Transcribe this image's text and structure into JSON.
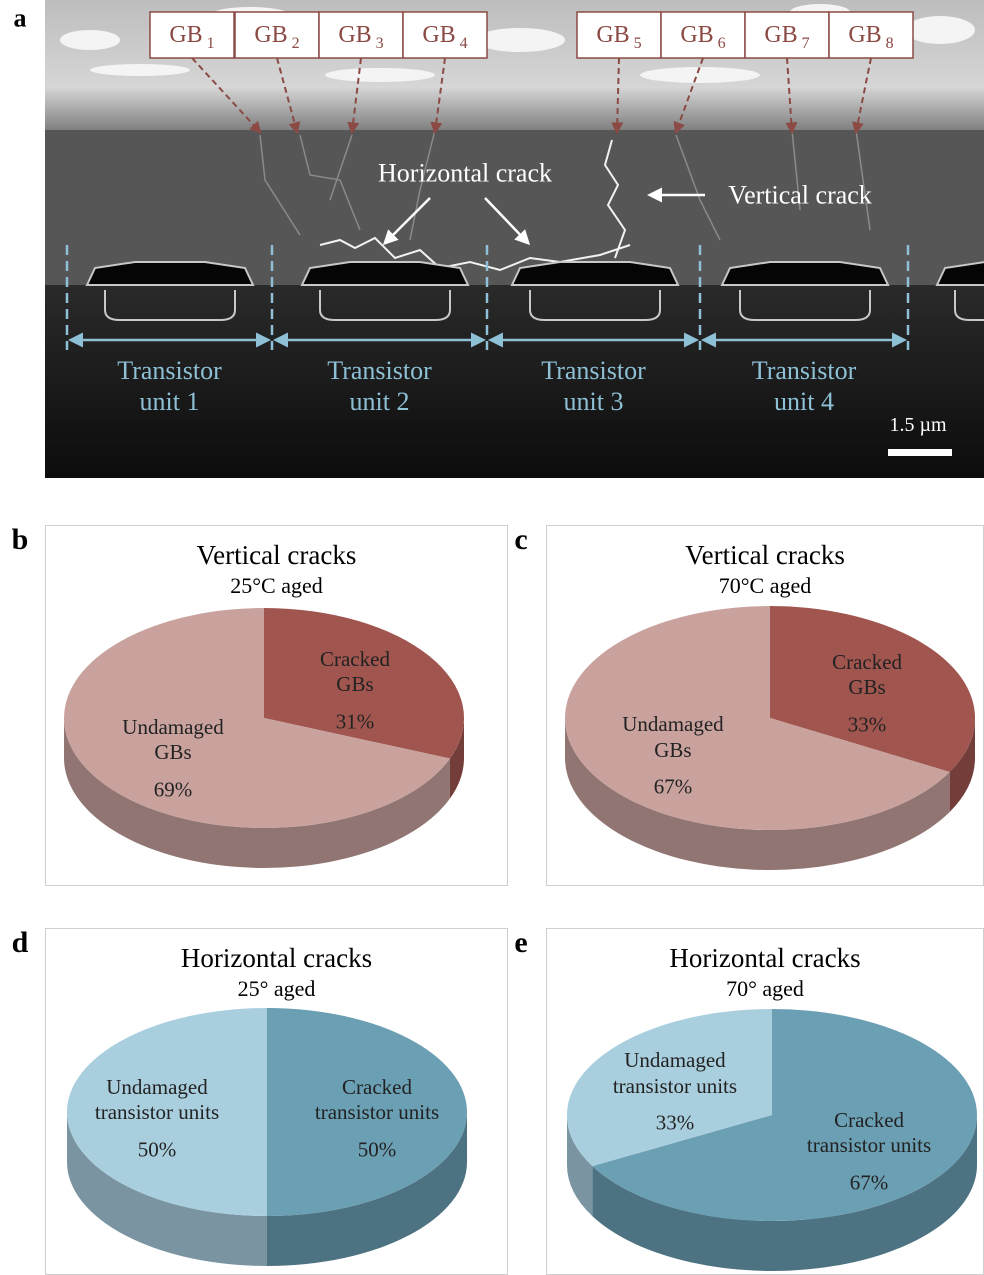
{
  "panel_a": {
    "label": "a",
    "grain_boundaries": [
      {
        "name": "GB",
        "index": "1"
      },
      {
        "name": "GB",
        "index": "2"
      },
      {
        "name": "GB",
        "index": "3"
      },
      {
        "name": "GB",
        "index": "4"
      },
      {
        "name": "GB",
        "index": "5"
      },
      {
        "name": "GB",
        "index": "6"
      },
      {
        "name": "GB",
        "index": "7"
      },
      {
        "name": "GB",
        "index": "8"
      }
    ],
    "horizontal_crack": "Horizontal crack",
    "vertical_crack": "Vertical crack",
    "transistor_units": [
      "Transistor\nunit 1",
      "Transistor\nunit 2",
      "Transistor\nunit 3",
      "Transistor\nunit 4"
    ],
    "scale_bar": "1.5 µm"
  },
  "chart_data": [
    {
      "type": "pie",
      "panel_label": "b",
      "title": "Vertical cracks",
      "subtitle": "25°C aged",
      "categories": [
        "Cracked\nGBs",
        "Undamaged\nGBs"
      ],
      "values": [
        31,
        69
      ],
      "value_labels": [
        "31%",
        "69%"
      ],
      "colors": [
        "#a0554f",
        "#c9a29e"
      ]
    },
    {
      "type": "pie",
      "panel_label": "c",
      "title": "Vertical cracks",
      "subtitle": "70°C aged",
      "categories": [
        "Cracked\nGBs",
        "Undamaged\nGBs"
      ],
      "values": [
        33,
        67
      ],
      "value_labels": [
        "33%",
        "67%"
      ],
      "colors": [
        "#a0554f",
        "#c9a29e"
      ]
    },
    {
      "type": "pie",
      "panel_label": "d",
      "title": "Horizontal cracks",
      "subtitle": "25° aged",
      "categories": [
        "Cracked\ntransistor units",
        "Undamaged\ntransistor units"
      ],
      "values": [
        50,
        50
      ],
      "value_labels": [
        "50%",
        "50%"
      ],
      "colors": [
        "#6b9fb4",
        "#a9cfdf"
      ]
    },
    {
      "type": "pie",
      "panel_label": "e",
      "title": "Horizontal cracks",
      "subtitle": "70° aged",
      "categories": [
        "Cracked\ntransistor units",
        "Undamaged\ntransistor units"
      ],
      "values": [
        67,
        33
      ],
      "value_labels": [
        "67%",
        "33%"
      ],
      "colors": [
        "#6b9fb4",
        "#a9cfdf"
      ]
    }
  ]
}
